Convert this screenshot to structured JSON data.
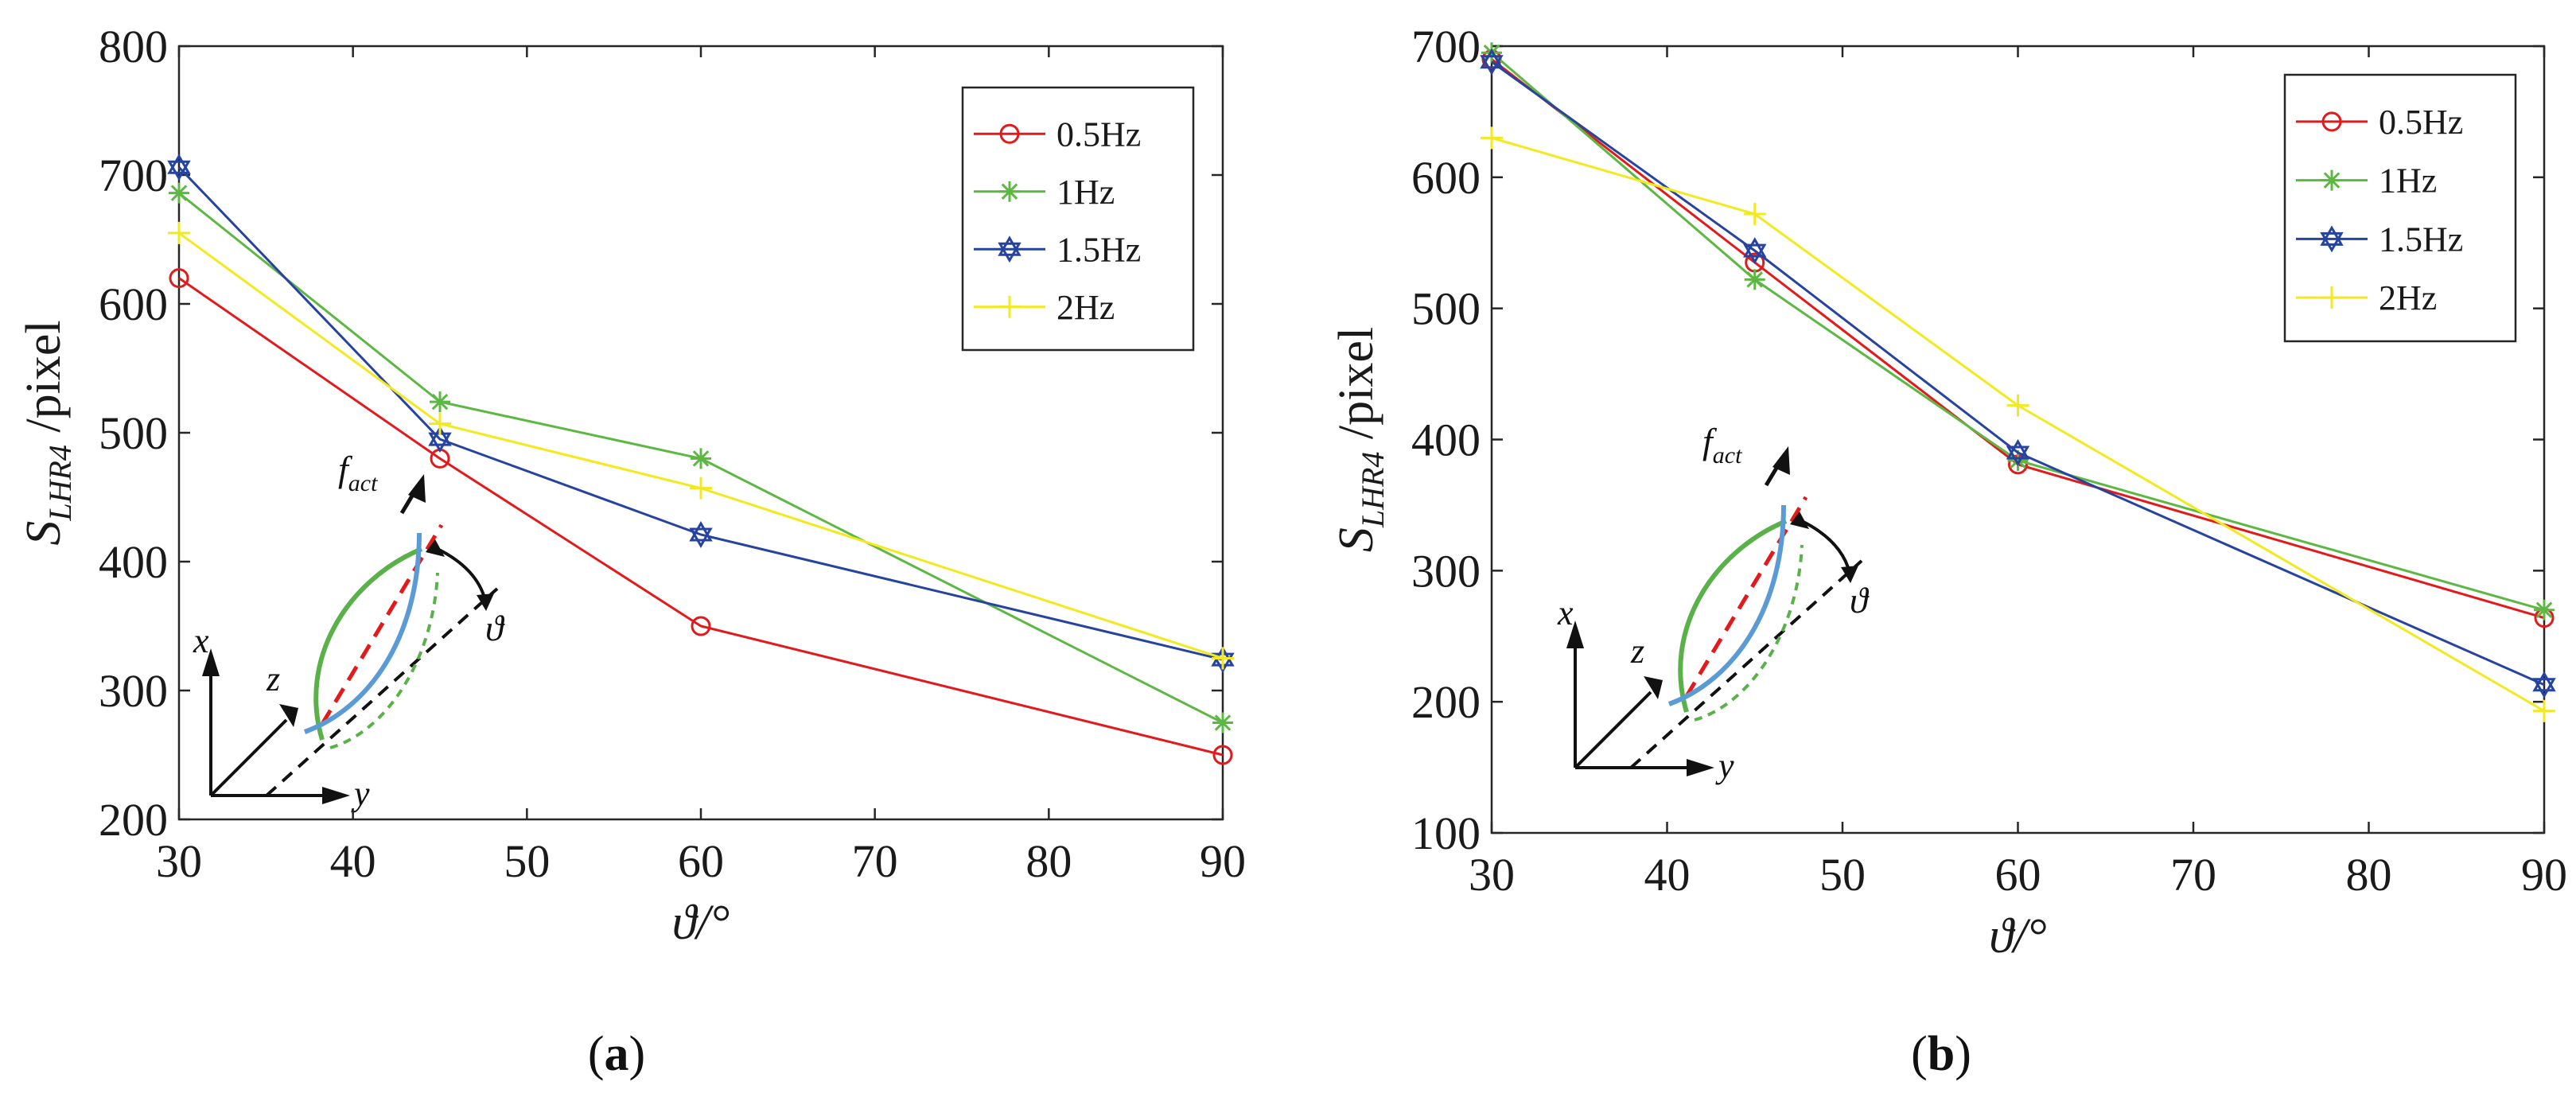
{
  "colors": {
    "0.5Hz": "#e31a1c",
    "1Hz": "#5db843",
    "1.5Hz": "#2643a0",
    "2Hz": "#f2e91f",
    "diagram_green": "#5ab14a",
    "diagram_blue": "#5b9bd5",
    "diagram_red": "#e31a1c"
  },
  "chart_data": [
    {
      "type": "line",
      "panel_label": "(a)",
      "title": "",
      "xlabel": "ϑ/°",
      "ylabel_main": "S",
      "ylabel_sub": "LHR4",
      "ylabel_unit": " /pixel",
      "x": [
        30,
        45,
        60,
        90
      ],
      "xlim": [
        30,
        90
      ],
      "ylim": [
        200,
        800
      ],
      "xticks": [
        "30",
        "40",
        "50",
        "60",
        "70",
        "80",
        "90"
      ],
      "yticks": [
        "200",
        "300",
        "400",
        "500",
        "600",
        "700",
        "800"
      ],
      "legend_position": "top-right",
      "series": [
        {
          "name": "0.5Hz",
          "marker": "circle",
          "values": [
            620,
            480,
            350,
            250
          ]
        },
        {
          "name": "1Hz",
          "marker": "asterisk",
          "values": [
            686,
            524,
            480,
            275
          ]
        },
        {
          "name": "1.5Hz",
          "marker": "hexagram",
          "values": [
            706,
            495,
            421,
            324
          ]
        },
        {
          "name": "2Hz",
          "marker": "plus",
          "values": [
            655,
            507,
            457,
            325
          ]
        }
      ],
      "diagram": {
        "f_main": "f",
        "f_sub": "act",
        "theta": "ϑ",
        "x": "x",
        "y": "y",
        "z": "z"
      }
    },
    {
      "type": "line",
      "panel_label": "(b)",
      "title": "",
      "xlabel": "ϑ/°",
      "ylabel_main": "S",
      "ylabel_sub": "LHR4",
      "ylabel_unit": " /pixel",
      "x": [
        30,
        45,
        60,
        90
      ],
      "xlim": [
        30,
        90
      ],
      "ylim": [
        100,
        700
      ],
      "xticks": [
        "30",
        "40",
        "50",
        "60",
        "70",
        "80",
        "90"
      ],
      "yticks": [
        "100",
        "200",
        "300",
        "400",
        "500",
        "600",
        "700"
      ],
      "legend_position": "top-right",
      "series": [
        {
          "name": "0.5Hz",
          "marker": "circle",
          "values": [
            690,
            535,
            381,
            264
          ]
        },
        {
          "name": "1Hz",
          "marker": "asterisk",
          "values": [
            695,
            522,
            384,
            270
          ]
        },
        {
          "name": "1.5Hz",
          "marker": "hexagram",
          "values": [
            688,
            544,
            390,
            213
          ]
        },
        {
          "name": "2Hz",
          "marker": "plus",
          "values": [
            630,
            572,
            426,
            193
          ]
        }
      ],
      "diagram": {
        "f_main": "f",
        "f_sub": "act",
        "theta": "ϑ",
        "x": "x",
        "y": "y",
        "z": "z"
      }
    }
  ]
}
